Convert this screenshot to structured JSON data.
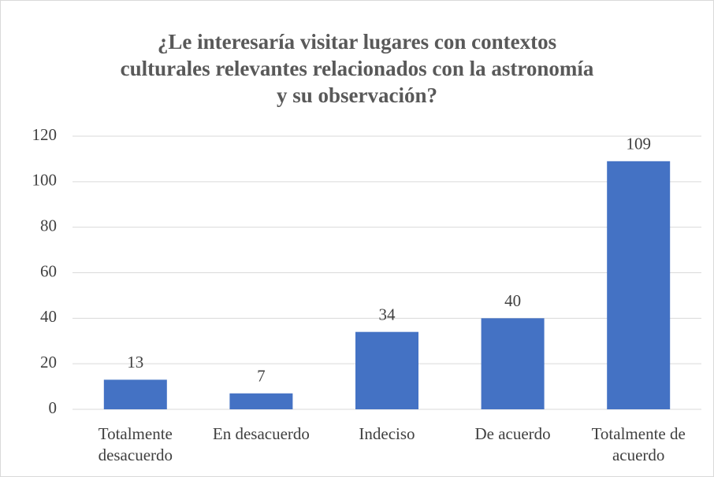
{
  "chart_data": {
    "type": "bar",
    "title": "¿Le interesaría visitar lugares con contextos culturales relevantes relacionados con la astronomía y su observación?",
    "categories": [
      "Totalmente desacuerdo",
      "En desacuerdo",
      "Indeciso",
      "De acuerdo",
      "Totalmente de acuerdo"
    ],
    "values": [
      13,
      7,
      34,
      40,
      109
    ],
    "color": "#4472c4",
    "ylim": [
      0,
      120
    ],
    "yticks": [
      0,
      20,
      40,
      60,
      80,
      100,
      120
    ],
    "grid": true
  }
}
